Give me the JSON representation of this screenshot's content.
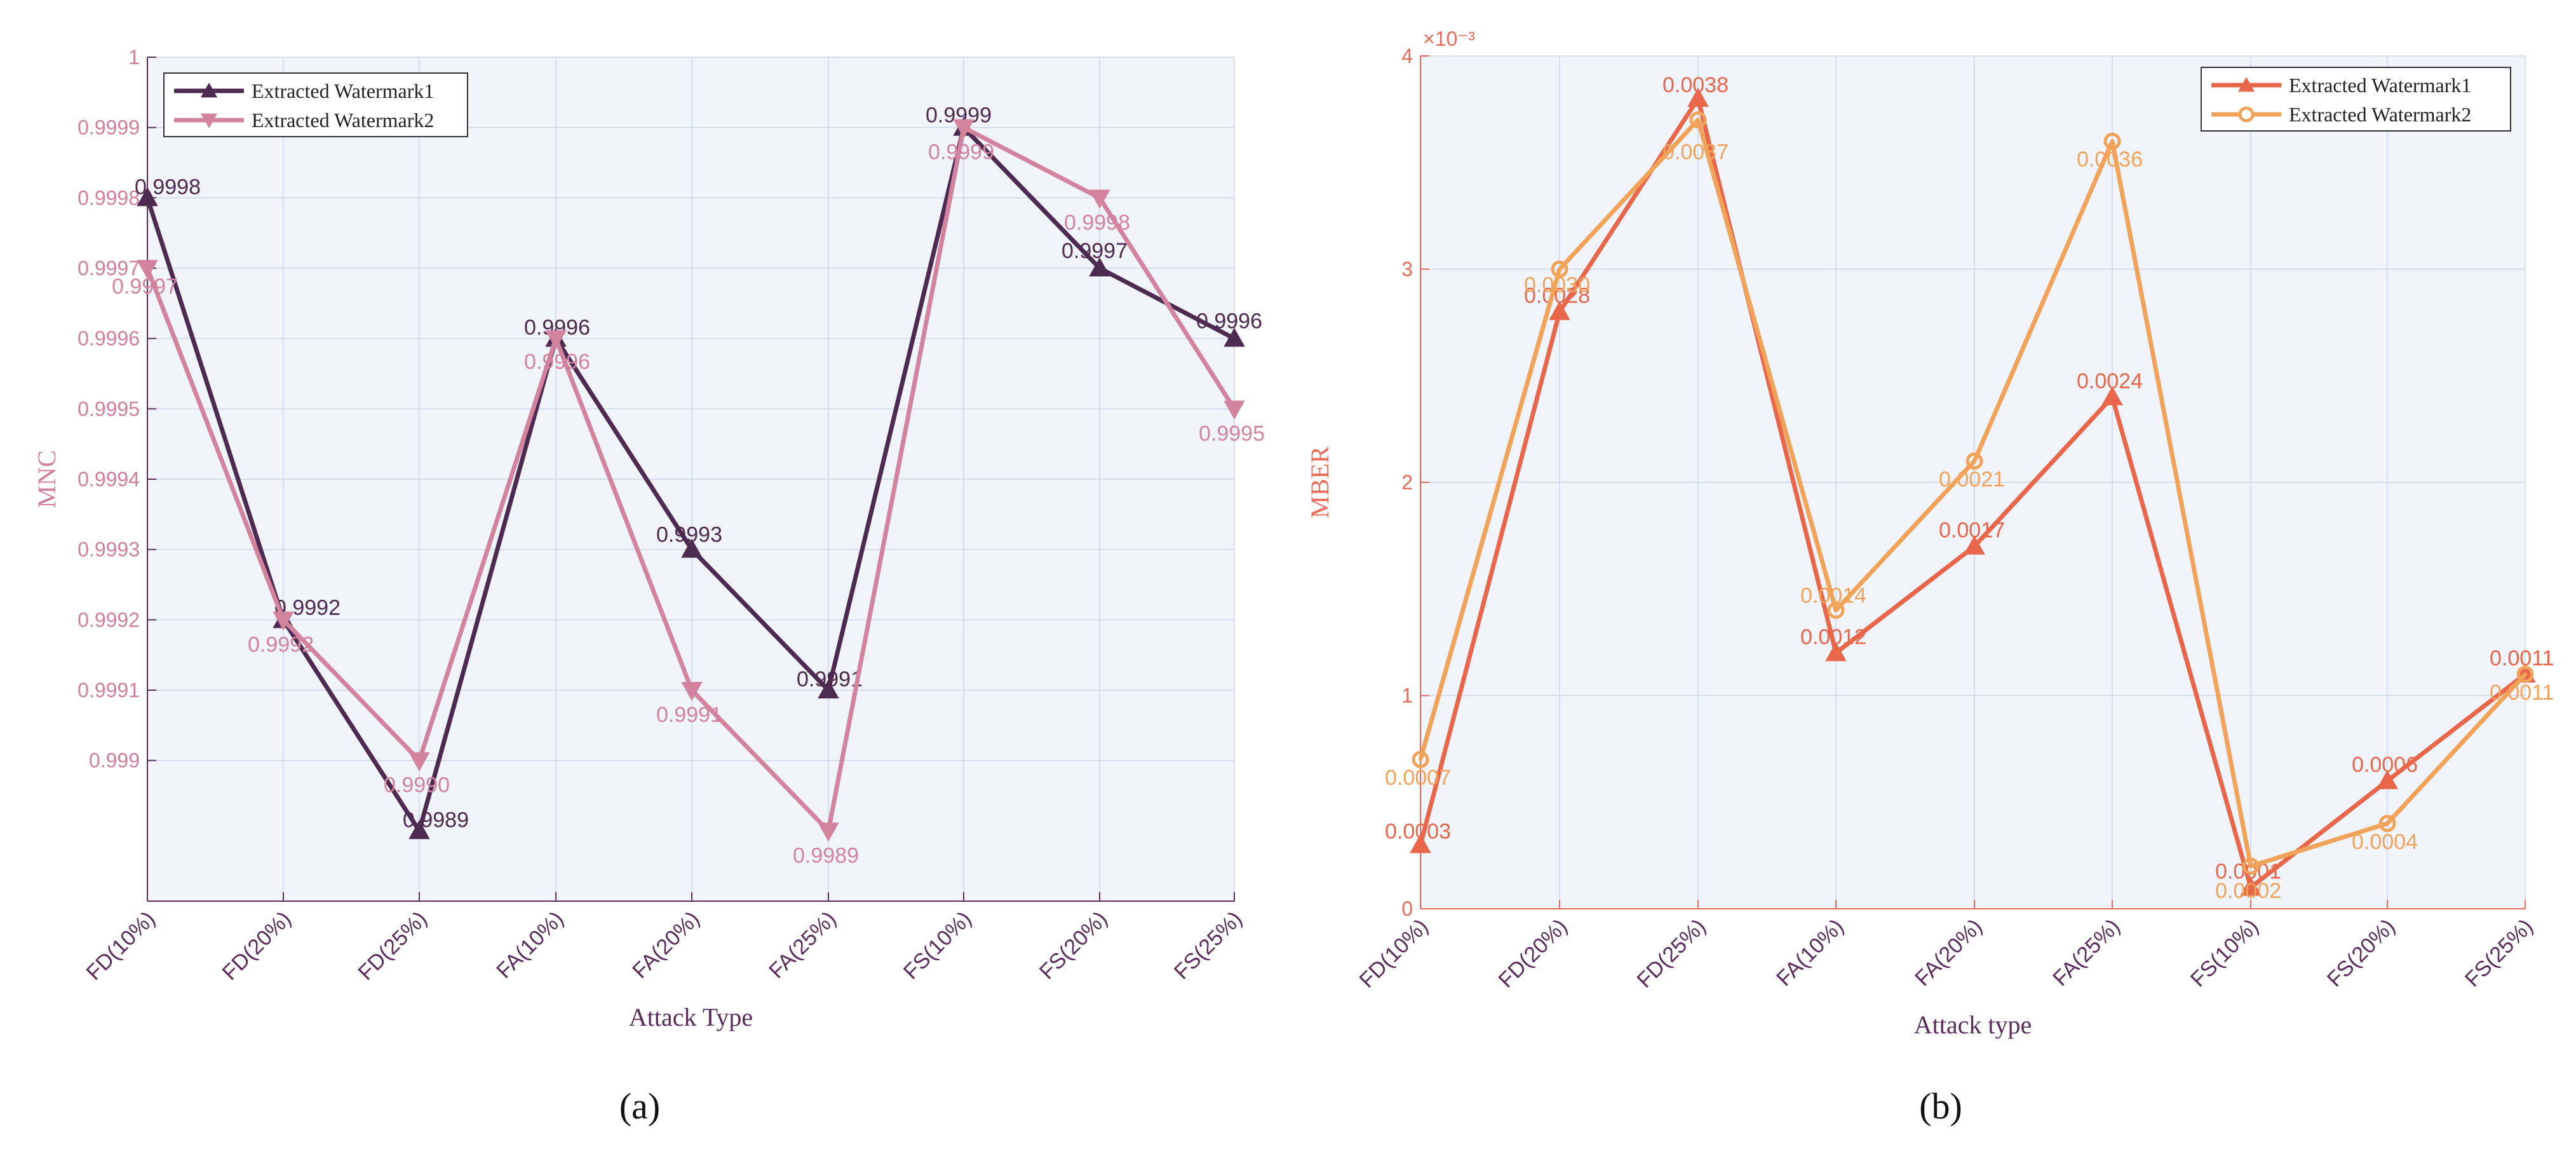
{
  "chart_data": [
    {
      "type": "line",
      "panel_label": "(a)",
      "xlabel": "Attack Type",
      "ylabel": "MNC",
      "categories": [
        "FD(10%)",
        "FD(20%)",
        "FD(25%)",
        "FA(10%)",
        "FA(20%)",
        "FA(25%)",
        "FS(10%)",
        "FS(20%)",
        "FS(25%)"
      ],
      "ylim": [
        0.9988,
        1.0
      ],
      "yticks": [
        0.999,
        0.9991,
        0.9992,
        0.9993,
        0.9994,
        0.9995,
        0.9996,
        0.9997,
        0.9998,
        0.9999,
        1
      ],
      "ytick_labels": [
        "0.999",
        "0.9991",
        "0.9992",
        "0.9993",
        "0.9994",
        "0.9995",
        "0.9996",
        "0.9997",
        "0.9998",
        "0.9999",
        "1"
      ],
      "grid": true,
      "legend_position": "top-left",
      "series": [
        {
          "name": "Extracted Watermark1",
          "color": "#4d2a4f",
          "marker": "triangle-up",
          "values": [
            0.9998,
            0.9992,
            0.9989,
            0.9996,
            0.9993,
            0.9991,
            0.9999,
            0.9997,
            0.9996
          ],
          "labels": [
            "0.9998",
            "0.9992",
            "0.9989",
            "0.9996",
            "0.9993",
            "0.9991",
            "0.9999",
            "0.9997",
            "0.9996"
          ]
        },
        {
          "name": "Extracted Watermark2",
          "color": "#d2849f",
          "marker": "triangle-down",
          "values": [
            0.9997,
            0.9992,
            0.999,
            0.9996,
            0.9991,
            0.9989,
            0.9999,
            0.9998,
            0.9995
          ],
          "labels": [
            "0.9997",
            "0.9992",
            "0.9990",
            "0.9996",
            "0.9991",
            "0.9989",
            "0.9999",
            "0.9998",
            "0.9995"
          ]
        }
      ]
    },
    {
      "type": "line",
      "panel_label": "(b)",
      "xlabel": "Attack type",
      "ylabel": "MBER",
      "exponent_label": "×10⁻³",
      "categories": [
        "FD(10%)",
        "FD(20%)",
        "FD(25%)",
        "FA(10%)",
        "FA(20%)",
        "FA(25%)",
        "FS(10%)",
        "FS(20%)",
        "FS(25%)"
      ],
      "ylim": [
        0,
        4
      ],
      "yticks": [
        0,
        1,
        2,
        3,
        4
      ],
      "ytick_labels": [
        "0",
        "1",
        "2",
        "3",
        "4"
      ],
      "grid": true,
      "legend_position": "top-right",
      "series": [
        {
          "name": "Extracted Watermark1",
          "color": "#e8664a",
          "marker": "triangle-up",
          "values": [
            0.3,
            2.8,
            3.8,
            1.2,
            1.7,
            2.4,
            0.1,
            0.6,
            1.1
          ],
          "labels": [
            "0.0003",
            "0.0028",
            "0.0038",
            "0.0012",
            "0.0017",
            "0.0024",
            "0.0001",
            "0.0006",
            "0.0011"
          ]
        },
        {
          "name": "Extracted Watermark2",
          "color": "#f2a35a",
          "marker": "circle",
          "values": [
            0.7,
            3.0,
            3.7,
            1.4,
            2.1,
            3.6,
            0.2,
            0.4,
            1.1
          ],
          "labels": [
            "0.0007",
            "0.0030",
            "0.0037",
            "0.0014",
            "0.0021",
            "0.0036",
            "0.0002",
            "0.0004",
            "0.0011"
          ]
        }
      ]
    }
  ]
}
